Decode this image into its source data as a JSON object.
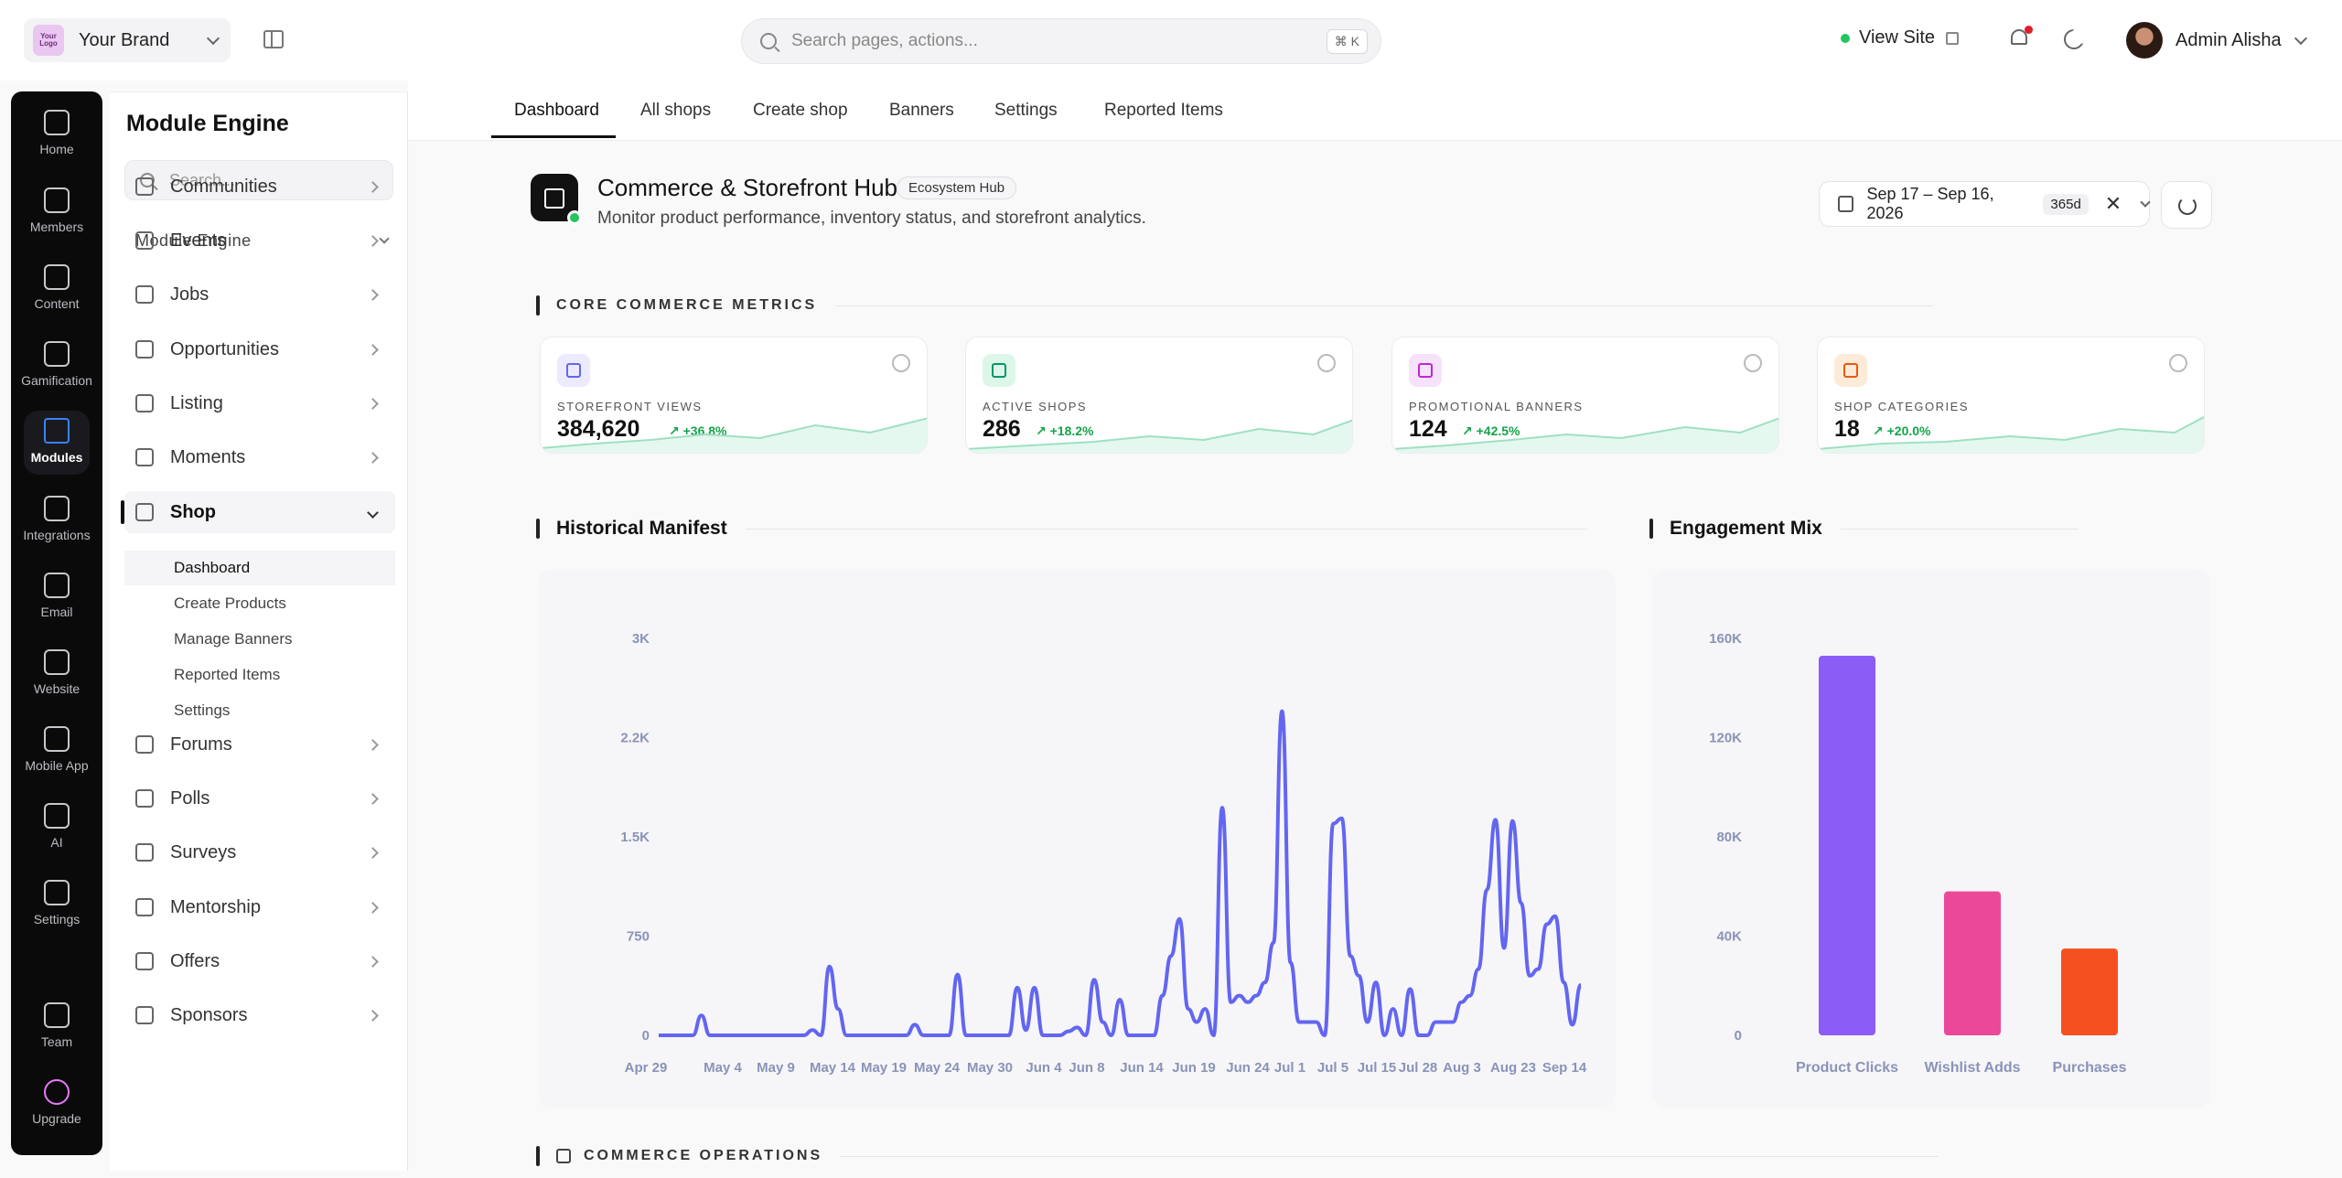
{
  "topbar": {
    "brand_logo_text": "Your Logo",
    "brand_name": "Your Brand",
    "search_placeholder": "Search pages, actions...",
    "search_shortcut": "⌘ K",
    "view_site": "View Site",
    "user_name": "Admin Alisha"
  },
  "rail": {
    "items": [
      {
        "label": "Home",
        "icon": "home-icon"
      },
      {
        "label": "Members",
        "icon": "members-icon"
      },
      {
        "label": "Content",
        "icon": "document-icon"
      },
      {
        "label": "Gamification",
        "icon": "trophy-icon"
      },
      {
        "label": "Modules",
        "icon": "grid-icon",
        "active": true
      },
      {
        "label": "Integrations",
        "icon": "lightning-icon"
      },
      {
        "label": "Email",
        "icon": "mail-icon"
      },
      {
        "label": "Website",
        "icon": "globe-icon"
      },
      {
        "label": "Mobile App",
        "icon": "phone-icon"
      },
      {
        "label": "AI",
        "icon": "sparkle-icon"
      },
      {
        "label": "Settings",
        "icon": "gear-icon"
      }
    ],
    "bottom": [
      {
        "label": "Team",
        "icon": "team-icon"
      },
      {
        "label": "Upgrade",
        "icon": "upgrade-icon"
      }
    ]
  },
  "sidebar": {
    "title": "Module Engine",
    "search_placeholder": "Search...",
    "group_label": "Module Engine",
    "items": [
      {
        "label": "Communities"
      },
      {
        "label": "Events"
      },
      {
        "label": "Jobs"
      },
      {
        "label": "Opportunities"
      },
      {
        "label": "Listing"
      },
      {
        "label": "Moments"
      },
      {
        "label": "Shop",
        "open": true
      },
      {
        "label": "Forums"
      },
      {
        "label": "Polls"
      },
      {
        "label": "Surveys"
      },
      {
        "label": "Mentorship"
      },
      {
        "label": "Offers"
      },
      {
        "label": "Sponsors"
      }
    ],
    "shop_subitems": [
      "Dashboard",
      "Create Products",
      "Manage Banners",
      "Reported Items",
      "Settings"
    ]
  },
  "tabs": [
    "Dashboard",
    "All shops",
    "Create shop",
    "Banners",
    "Settings",
    "Reported Items"
  ],
  "hub": {
    "title": "Commerce & Storefront Hub",
    "badge": "Ecosystem Hub",
    "subtitle": "Monitor product performance, inventory status, and storefront analytics.",
    "date_range": "Sep 17 – Sep 16, 2026",
    "days": "365d"
  },
  "sections": {
    "core_metrics": "CORE COMMERCE METRICS",
    "historical": "Historical Manifest",
    "engagement": "Engagement Mix",
    "operations": "COMMERCE OPERATIONS"
  },
  "metrics": [
    {
      "label": "STOREFRONT VIEWS",
      "value": "384,620",
      "delta": "+36.8%",
      "color": "#6366f1",
      "bg": "#eceafe"
    },
    {
      "label": "ACTIVE SHOPS",
      "value": "286",
      "delta": "+18.2%",
      "color": "#059669",
      "bg": "#dcf7ea"
    },
    {
      "label": "PROMOTIONAL BANNERS",
      "value": "124",
      "delta": "+42.5%",
      "color": "#c026d3",
      "bg": "#f6e2fb"
    },
    {
      "label": "SHOP CATEGORIES",
      "value": "18",
      "delta": "+20.0%",
      "color": "#ea580c",
      "bg": "#fdebd9"
    }
  ],
  "chart_data": [
    {
      "type": "line",
      "y_ticks": [
        "0",
        "750",
        "1.5K",
        "2.2K",
        "3K"
      ],
      "ylim": [
        0,
        3000
      ],
      "x_tick_labels": [
        "Apr 29",
        "May 4",
        "May 9",
        "May 14",
        "May 19",
        "May 24",
        "May 30",
        "Jun 4",
        "Jun 8",
        "Jun 14",
        "Jun 19",
        "Jun 24",
        "Jul 1",
        "Jul 5",
        "Jul 15",
        "Jul 28",
        "Aug 3",
        "Aug 23",
        "Sep 14"
      ],
      "series": [
        {
          "color": "#6366f1",
          "values": [
            0,
            0,
            0,
            0,
            0,
            150,
            0,
            0,
            0,
            0,
            0,
            0,
            0,
            0,
            0,
            0,
            0,
            0,
            40,
            0,
            520,
            200,
            0,
            0,
            0,
            0,
            0,
            0,
            0,
            0,
            80,
            0,
            0,
            0,
            0,
            460,
            0,
            0,
            0,
            0,
            0,
            0,
            360,
            40,
            360,
            0,
            0,
            0,
            30,
            60,
            0,
            420,
            100,
            0,
            270,
            0,
            0,
            0,
            0,
            300,
            600,
            880,
            200,
            100,
            200,
            0,
            1720,
            250,
            300,
            250,
            300,
            400,
            700,
            2450,
            550,
            100,
            100,
            100,
            0,
            1600,
            1640,
            600,
            450,
            100,
            400,
            0,
            200,
            0,
            350,
            0,
            0,
            100,
            100,
            100,
            250,
            300,
            500,
            1100,
            1630,
            660,
            1620,
            1000,
            450,
            500,
            840,
            900,
            400,
            80,
            380
          ]
        }
      ]
    },
    {
      "type": "bar",
      "categories": [
        "Product Clicks",
        "Wishlist Adds",
        "Purchases"
      ],
      "values": [
        153000,
        58000,
        35000
      ],
      "colors": [
        "#8b5cf6",
        "#ec4899",
        "#f4511e"
      ],
      "y_ticks": [
        "0",
        "40K",
        "80K",
        "120K",
        "160K"
      ],
      "ylim": [
        0,
        160000
      ]
    }
  ]
}
